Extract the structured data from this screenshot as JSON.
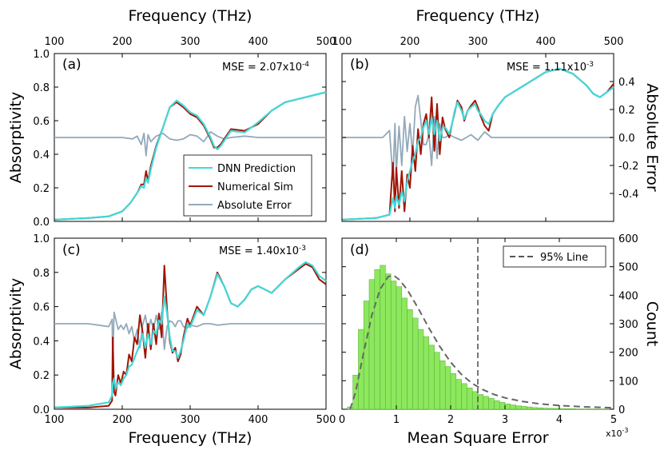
{
  "chart_data": [
    {
      "id": "a",
      "type": "line",
      "panel_label": "(a)",
      "annotation": {
        "prefix": "MSE = 2.07x10",
        "exponent": "-4"
      },
      "xlim": [
        100,
        500
      ],
      "ylim_left": [
        0,
        1.0
      ],
      "xticks": [
        100,
        200,
        300,
        400,
        500
      ],
      "yticks_left": [
        0.0,
        0.2,
        0.4,
        0.6,
        0.8,
        1.0
      ],
      "legend": {
        "position": "lower-right",
        "entries": [
          {
            "label": "DNN Prediction",
            "color": "#40D8D8"
          },
          {
            "label": "Numerical Sim",
            "color": "#A01404"
          },
          {
            "label": "Absolute Error",
            "color": "#93A9B9"
          }
        ]
      },
      "series": [
        {
          "name": "Numerical Sim",
          "color": "#A01404",
          "x": [
            100,
            150,
            180,
            200,
            212,
            222,
            228,
            232,
            235,
            238,
            242,
            250,
            260,
            270,
            280,
            290,
            300,
            310,
            320,
            330,
            335,
            340,
            345,
            350,
            360,
            380,
            400,
            420,
            440,
            460,
            480,
            500
          ],
          "y": [
            0.01,
            0.02,
            0.03,
            0.06,
            0.11,
            0.17,
            0.22,
            0.22,
            0.3,
            0.24,
            0.33,
            0.45,
            0.56,
            0.68,
            0.71,
            0.68,
            0.64,
            0.62,
            0.57,
            0.49,
            0.44,
            0.44,
            0.46,
            0.49,
            0.55,
            0.54,
            0.58,
            0.66,
            0.71,
            0.73,
            0.75,
            0.77
          ]
        },
        {
          "name": "DNN Prediction",
          "color": "#40D8D8",
          "x": [
            100,
            150,
            180,
            200,
            212,
            222,
            228,
            232,
            235,
            238,
            242,
            250,
            260,
            270,
            280,
            290,
            300,
            310,
            320,
            330,
            335,
            340,
            345,
            350,
            360,
            380,
            400,
            420,
            440,
            460,
            480,
            500
          ],
          "y": [
            0.01,
            0.02,
            0.03,
            0.06,
            0.11,
            0.17,
            0.21,
            0.2,
            0.26,
            0.23,
            0.31,
            0.44,
            0.56,
            0.68,
            0.72,
            0.69,
            0.65,
            0.63,
            0.58,
            0.5,
            0.45,
            0.43,
            0.45,
            0.48,
            0.54,
            0.53,
            0.59,
            0.66,
            0.71,
            0.73,
            0.75,
            0.77
          ]
        },
        {
          "name": "Absolute Error",
          "color": "#93A9B9",
          "x": [
            100,
            200,
            215,
            222,
            228,
            232,
            235,
            238,
            242,
            250,
            260,
            270,
            280,
            290,
            300,
            310,
            320,
            330,
            340,
            350,
            360,
            380,
            400,
            420,
            500
          ],
          "y": [
            0.0,
            0.0,
            -0.01,
            0.01,
            -0.05,
            0.03,
            -0.13,
            0.02,
            -0.03,
            0.01,
            0.03,
            -0.01,
            -0.02,
            -0.01,
            0.02,
            0.01,
            -0.03,
            0.04,
            0.01,
            -0.01,
            0.0,
            0.01,
            0.0,
            0.0,
            0.0
          ]
        }
      ]
    },
    {
      "id": "b",
      "type": "line",
      "panel_label": "(b)",
      "annotation": {
        "prefix": "MSE = 1.11x10",
        "exponent": "-3"
      },
      "xlim": [
        100,
        500
      ],
      "ylim_left": [
        0,
        1.0
      ],
      "ylim_right": [
        -0.6,
        0.6
      ],
      "xticks": [
        100,
        200,
        300,
        400,
        500
      ],
      "yticks_right": [
        -0.4,
        -0.2,
        0.0,
        0.2,
        0.4
      ],
      "ytick_labels_right": [
        "-0.4",
        "-0.2",
        "0.0",
        "0.2",
        "0.4"
      ],
      "ylabel_right": "Absolute Error",
      "series": [
        {
          "name": "Numerical Sim",
          "color": "#A01404",
          "x": [
            100,
            150,
            170,
            175,
            178,
            180,
            184,
            188,
            192,
            196,
            200,
            204,
            208,
            212,
            216,
            220,
            224,
            228,
            232,
            236,
            240,
            244,
            248,
            252,
            258,
            262,
            266,
            270,
            276,
            280,
            285,
            290,
            296,
            300,
            304,
            310,
            316,
            322,
            330,
            340,
            360,
            380,
            400,
            420,
            440,
            460,
            470,
            480,
            490,
            500
          ],
          "y": [
            0.01,
            0.02,
            0.04,
            0.35,
            0.06,
            0.32,
            0.08,
            0.3,
            0.06,
            0.28,
            0.2,
            0.45,
            0.3,
            0.55,
            0.4,
            0.58,
            0.64,
            0.5,
            0.74,
            0.42,
            0.7,
            0.4,
            0.62,
            0.55,
            0.5,
            0.58,
            0.65,
            0.72,
            0.68,
            0.6,
            0.66,
            0.69,
            0.72,
            0.68,
            0.63,
            0.57,
            0.54,
            0.64,
            0.69,
            0.74,
            0.79,
            0.84,
            0.89,
            0.91,
            0.88,
            0.81,
            0.76,
            0.74,
            0.77,
            0.82
          ]
        },
        {
          "name": "DNN Prediction",
          "color": "#40D8D8",
          "x": [
            100,
            150,
            170,
            175,
            178,
            180,
            184,
            188,
            192,
            196,
            200,
            204,
            208,
            212,
            216,
            220,
            224,
            228,
            232,
            236,
            240,
            244,
            248,
            252,
            258,
            262,
            266,
            270,
            276,
            280,
            285,
            290,
            296,
            300,
            304,
            310,
            316,
            322,
            330,
            340,
            360,
            380,
            400,
            420,
            440,
            460,
            470,
            480,
            490,
            500
          ],
          "y": [
            0.01,
            0.02,
            0.04,
            0.14,
            0.08,
            0.15,
            0.1,
            0.18,
            0.12,
            0.24,
            0.3,
            0.36,
            0.4,
            0.48,
            0.5,
            0.56,
            0.6,
            0.52,
            0.62,
            0.52,
            0.6,
            0.48,
            0.56,
            0.56,
            0.52,
            0.58,
            0.66,
            0.71,
            0.66,
            0.61,
            0.66,
            0.68,
            0.7,
            0.66,
            0.64,
            0.6,
            0.58,
            0.64,
            0.69,
            0.74,
            0.79,
            0.84,
            0.89,
            0.91,
            0.88,
            0.81,
            0.76,
            0.74,
            0.77,
            0.8
          ]
        },
        {
          "name": "Absolute Error",
          "color": "#93A9B9",
          "x": [
            100,
            160,
            170,
            175,
            178,
            180,
            184,
            188,
            192,
            196,
            200,
            204,
            208,
            212,
            216,
            220,
            224,
            228,
            232,
            236,
            240,
            244,
            248,
            252,
            258,
            266,
            276,
            290,
            300,
            310,
            320,
            340,
            380,
            420,
            500
          ],
          "y": [
            0.0,
            0.0,
            0.05,
            -0.3,
            0.1,
            -0.25,
            0.08,
            -0.2,
            0.15,
            -0.1,
            0.1,
            -0.12,
            0.22,
            0.3,
            0.12,
            -0.05,
            -0.05,
            0.02,
            -0.2,
            0.15,
            -0.15,
            0.1,
            0.0,
            0.0,
            0.02,
            0.0,
            -0.02,
            0.02,
            -0.02,
            0.04,
            0.0,
            0.0,
            0.0,
            0.0,
            0.0
          ]
        }
      ]
    },
    {
      "id": "c",
      "type": "line",
      "panel_label": "(c)",
      "annotation": {
        "prefix": "MSE = 1.40x10",
        "exponent": "-3"
      },
      "xlim": [
        100,
        500
      ],
      "ylim_left": [
        0,
        1.0
      ],
      "xticks": [
        100,
        200,
        300,
        400,
        500
      ],
      "xtick_labels": [
        "100",
        "200",
        "300",
        "400",
        "500"
      ],
      "yticks_left": [
        0.0,
        0.2,
        0.4,
        0.6,
        0.8,
        1.0
      ],
      "xlabel": "Frequency (THz)",
      "series": [
        {
          "name": "Numerical Sim",
          "color": "#A01404",
          "x": [
            100,
            150,
            180,
            185,
            186,
            188,
            190,
            194,
            198,
            202,
            206,
            210,
            214,
            218,
            222,
            226,
            230,
            234,
            238,
            242,
            246,
            250,
            254,
            258,
            262,
            266,
            270,
            274,
            278,
            282,
            286,
            290,
            296,
            300,
            310,
            320,
            330,
            340,
            350,
            360,
            370,
            380,
            390,
            400,
            420,
            440,
            460,
            470,
            480,
            490,
            500
          ],
          "y": [
            0.01,
            0.01,
            0.02,
            0.05,
            0.42,
            0.1,
            0.08,
            0.2,
            0.15,
            0.22,
            0.2,
            0.32,
            0.28,
            0.42,
            0.38,
            0.55,
            0.45,
            0.3,
            0.5,
            0.35,
            0.5,
            0.38,
            0.56,
            0.42,
            0.84,
            0.58,
            0.4,
            0.33,
            0.36,
            0.28,
            0.32,
            0.42,
            0.53,
            0.49,
            0.6,
            0.55,
            0.66,
            0.8,
            0.72,
            0.62,
            0.6,
            0.64,
            0.7,
            0.72,
            0.68,
            0.76,
            0.82,
            0.85,
            0.83,
            0.76,
            0.73
          ]
        },
        {
          "name": "DNN Prediction",
          "color": "#40D8D8",
          "x": [
            100,
            150,
            180,
            185,
            186,
            188,
            190,
            194,
            198,
            202,
            206,
            210,
            214,
            218,
            222,
            226,
            230,
            234,
            238,
            242,
            246,
            250,
            254,
            258,
            262,
            266,
            270,
            274,
            278,
            282,
            286,
            290,
            296,
            300,
            310,
            320,
            330,
            340,
            350,
            360,
            370,
            380,
            390,
            400,
            420,
            440,
            460,
            470,
            480,
            490,
            500
          ],
          "y": [
            0.01,
            0.02,
            0.04,
            0.08,
            0.15,
            0.18,
            0.12,
            0.16,
            0.14,
            0.18,
            0.2,
            0.25,
            0.26,
            0.3,
            0.34,
            0.38,
            0.44,
            0.36,
            0.44,
            0.38,
            0.46,
            0.44,
            0.52,
            0.5,
            0.66,
            0.56,
            0.42,
            0.34,
            0.34,
            0.3,
            0.34,
            0.4,
            0.5,
            0.48,
            0.58,
            0.55,
            0.66,
            0.79,
            0.72,
            0.62,
            0.6,
            0.64,
            0.7,
            0.72,
            0.68,
            0.76,
            0.83,
            0.86,
            0.84,
            0.78,
            0.75
          ]
        },
        {
          "name": "Absolute Error",
          "color": "#93A9B9",
          "x": [
            100,
            150,
            180,
            185,
            186,
            188,
            190,
            194,
            198,
            202,
            206,
            210,
            214,
            218,
            222,
            226,
            230,
            234,
            238,
            242,
            246,
            250,
            254,
            258,
            262,
            266,
            270,
            274,
            278,
            282,
            286,
            290,
            296,
            300,
            310,
            320,
            330,
            340,
            360,
            380,
            400,
            420,
            500
          ],
          "y": [
            0.0,
            0.0,
            -0.02,
            0.03,
            -0.27,
            0.08,
            0.04,
            -0.04,
            -0.01,
            -0.04,
            0.0,
            -0.07,
            -0.02,
            -0.12,
            -0.04,
            -0.17,
            -0.01,
            0.06,
            -0.06,
            0.03,
            -0.04,
            0.06,
            -0.04,
            0.08,
            -0.18,
            -0.02,
            0.02,
            0.01,
            -0.02,
            0.02,
            0.02,
            -0.02,
            -0.03,
            -0.01,
            -0.02,
            0.0,
            0.0,
            -0.01,
            0.0,
            0.0,
            0.0,
            0.0,
            0.0
          ]
        }
      ]
    },
    {
      "id": "d",
      "type": "bar",
      "panel_label": "(d)",
      "xlim": [
        0,
        5
      ],
      "ylim_right": [
        0,
        600
      ],
      "xticks": [
        0,
        1,
        2,
        3,
        4,
        5
      ],
      "xtick_labels": [
        "0",
        "1",
        "2",
        "3",
        "4",
        "5"
      ],
      "x_multiplier": {
        "base": "x10",
        "exponent": "-3"
      },
      "yticks_right": [
        0,
        100,
        200,
        300,
        400,
        500,
        600
      ],
      "ytick_labels_right": [
        "0",
        "100",
        "200",
        "300",
        "400",
        "500",
        "600"
      ],
      "xlabel": "Mean Square Error",
      "ylabel_right": "Count",
      "legend": {
        "position": "top-right",
        "entries": [
          {
            "label": "95% Line",
            "color": "#555555"
          }
        ]
      },
      "threshold_x": 2.5,
      "bar_color": "#8CE85C",
      "bin_width": 0.1,
      "bin_starts": [
        0.1,
        0.2,
        0.3,
        0.4,
        0.5,
        0.6,
        0.7,
        0.8,
        0.9,
        1.0,
        1.1,
        1.2,
        1.3,
        1.4,
        1.5,
        1.6,
        1.7,
        1.8,
        1.9,
        2.0,
        2.1,
        2.2,
        2.3,
        2.4,
        2.5,
        2.6,
        2.7,
        2.8,
        2.9,
        3.0,
        3.1,
        3.2,
        3.3,
        3.4,
        3.5,
        3.6,
        3.7,
        3.8,
        3.9,
        4.0,
        4.1,
        4.2,
        4.3,
        4.4,
        4.5,
        4.6,
        4.7,
        4.8,
        4.9
      ],
      "counts": [
        8,
        120,
        280,
        380,
        455,
        490,
        505,
        475,
        450,
        430,
        390,
        350,
        320,
        280,
        255,
        225,
        200,
        170,
        150,
        125,
        105,
        90,
        75,
        62,
        52,
        45,
        38,
        30,
        24,
        19,
        15,
        12,
        10,
        8,
        6,
        5,
        4,
        3,
        3,
        2,
        2,
        2,
        1,
        1,
        1,
        1,
        1,
        1,
        1
      ],
      "fit_curve": {
        "x": [
          0.15,
          0.25,
          0.4,
          0.55,
          0.7,
          0.85,
          0.95,
          1.05,
          1.2,
          1.4,
          1.6,
          1.8,
          2.0,
          2.2,
          2.4,
          2.6,
          2.8,
          3.0,
          3.3,
          3.6,
          4.0,
          4.5,
          5.0
        ],
        "y": [
          0,
          60,
          200,
          330,
          420,
          465,
          470,
          455,
          420,
          355,
          285,
          220,
          165,
          122,
          90,
          68,
          52,
          40,
          28,
          20,
          13,
          8,
          5
        ]
      }
    }
  ],
  "top_axis": {
    "xlabel": "Frequency (THz)",
    "tick_labels": [
      "100",
      "200",
      "300",
      "400",
      "500"
    ]
  },
  "left_axis": {
    "ylabel": "Absorptivity",
    "tick_labels": [
      "0.0",
      "0.2",
      "0.4",
      "0.6",
      "0.8",
      "1.0"
    ]
  }
}
